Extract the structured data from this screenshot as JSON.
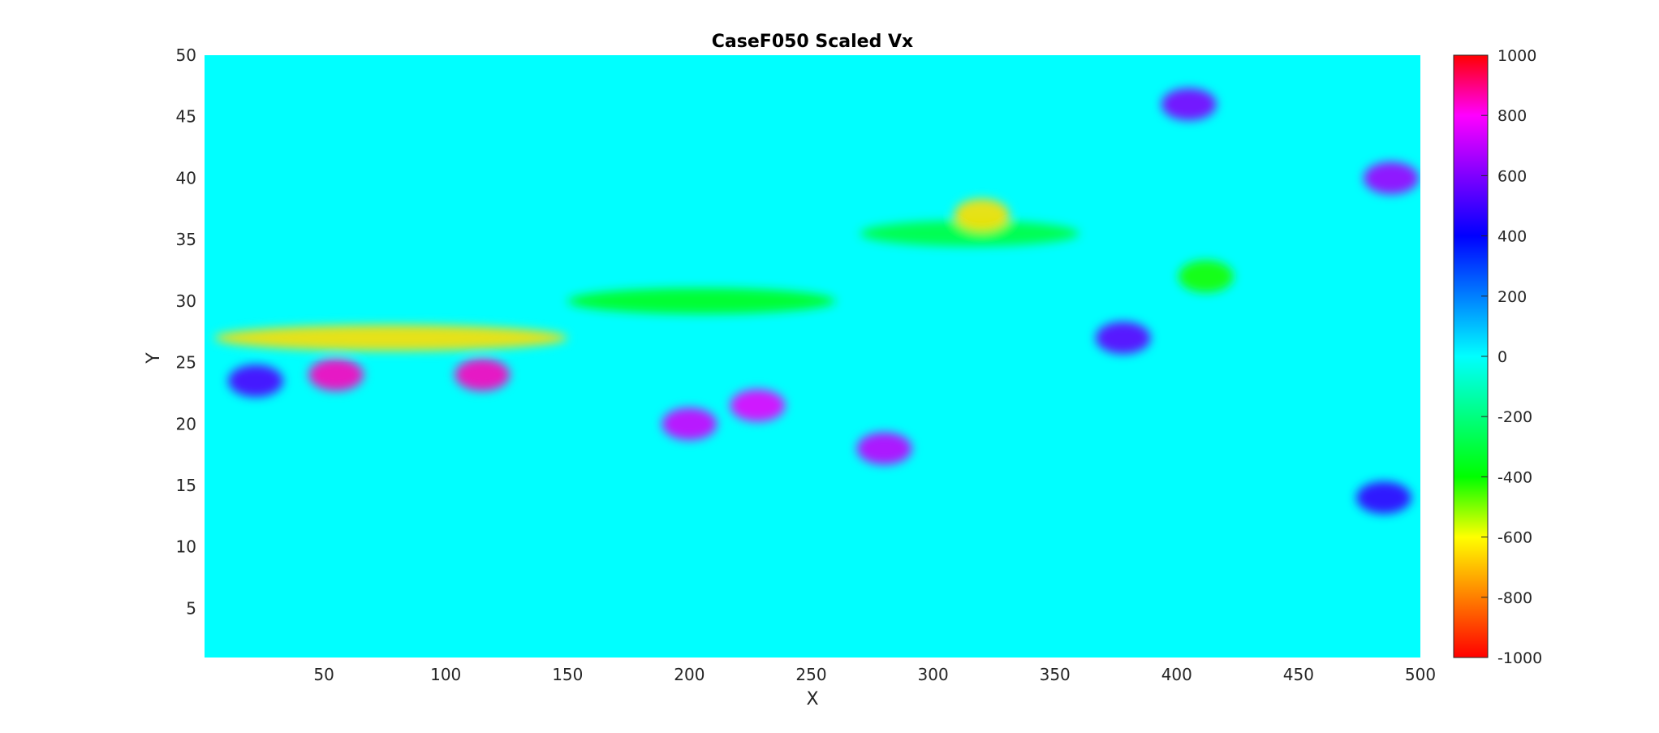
{
  "chart_data": {
    "type": "heatmap",
    "title": "CaseF050 Scaled Vx",
    "xlabel": "X",
    "ylabel": "Y",
    "xlim": [
      1,
      500
    ],
    "ylim": [
      1,
      50
    ],
    "xticks": [
      50,
      100,
      150,
      200,
      250,
      300,
      350,
      400,
      450,
      500
    ],
    "yticks": [
      5,
      10,
      15,
      20,
      25,
      30,
      35,
      40,
      45,
      50
    ],
    "colorbar": {
      "range": [
        -1000,
        1000
      ],
      "ticks": [
        -1000,
        -800,
        -600,
        -400,
        -200,
        0,
        200,
        400,
        600,
        800,
        1000
      ],
      "colormap": "hsv-like: red(-1000) → orange → yellow → green(-400) → cyan(0) → blue(400) → purple → magenta(800) → red(1000)"
    },
    "background_value": 0,
    "features": [
      {
        "kind": "band",
        "x": [
          5,
          150
        ],
        "y": 27,
        "value": -650
      },
      {
        "kind": "band",
        "x": [
          150,
          260
        ],
        "y": 30,
        "value": -350
      },
      {
        "kind": "band",
        "x": [
          270,
          360
        ],
        "y": 35.5,
        "value": -300
      },
      {
        "kind": "blob",
        "x": 55,
        "y": 24,
        "value": 850
      },
      {
        "kind": "blob",
        "x": 115,
        "y": 24,
        "value": 850
      },
      {
        "kind": "blob",
        "x": 22,
        "y": 23.5,
        "value": 520
      },
      {
        "kind": "blob",
        "x": 200,
        "y": 20,
        "value": 720
      },
      {
        "kind": "blob",
        "x": 228,
        "y": 21.5,
        "value": 760
      },
      {
        "kind": "blob",
        "x": 280,
        "y": 18,
        "value": 700
      },
      {
        "kind": "blob",
        "x": 405,
        "y": 46,
        "value": 600
      },
      {
        "kind": "blob",
        "x": 488,
        "y": 40,
        "value": 650
      },
      {
        "kind": "blob",
        "x": 378,
        "y": 27,
        "value": 550
      },
      {
        "kind": "blob",
        "x": 485,
        "y": 14,
        "value": 480
      },
      {
        "kind": "blob",
        "x": 320,
        "y": 37,
        "value": -650
      },
      {
        "kind": "blob",
        "x": 412,
        "y": 32,
        "value": -420
      }
    ]
  }
}
